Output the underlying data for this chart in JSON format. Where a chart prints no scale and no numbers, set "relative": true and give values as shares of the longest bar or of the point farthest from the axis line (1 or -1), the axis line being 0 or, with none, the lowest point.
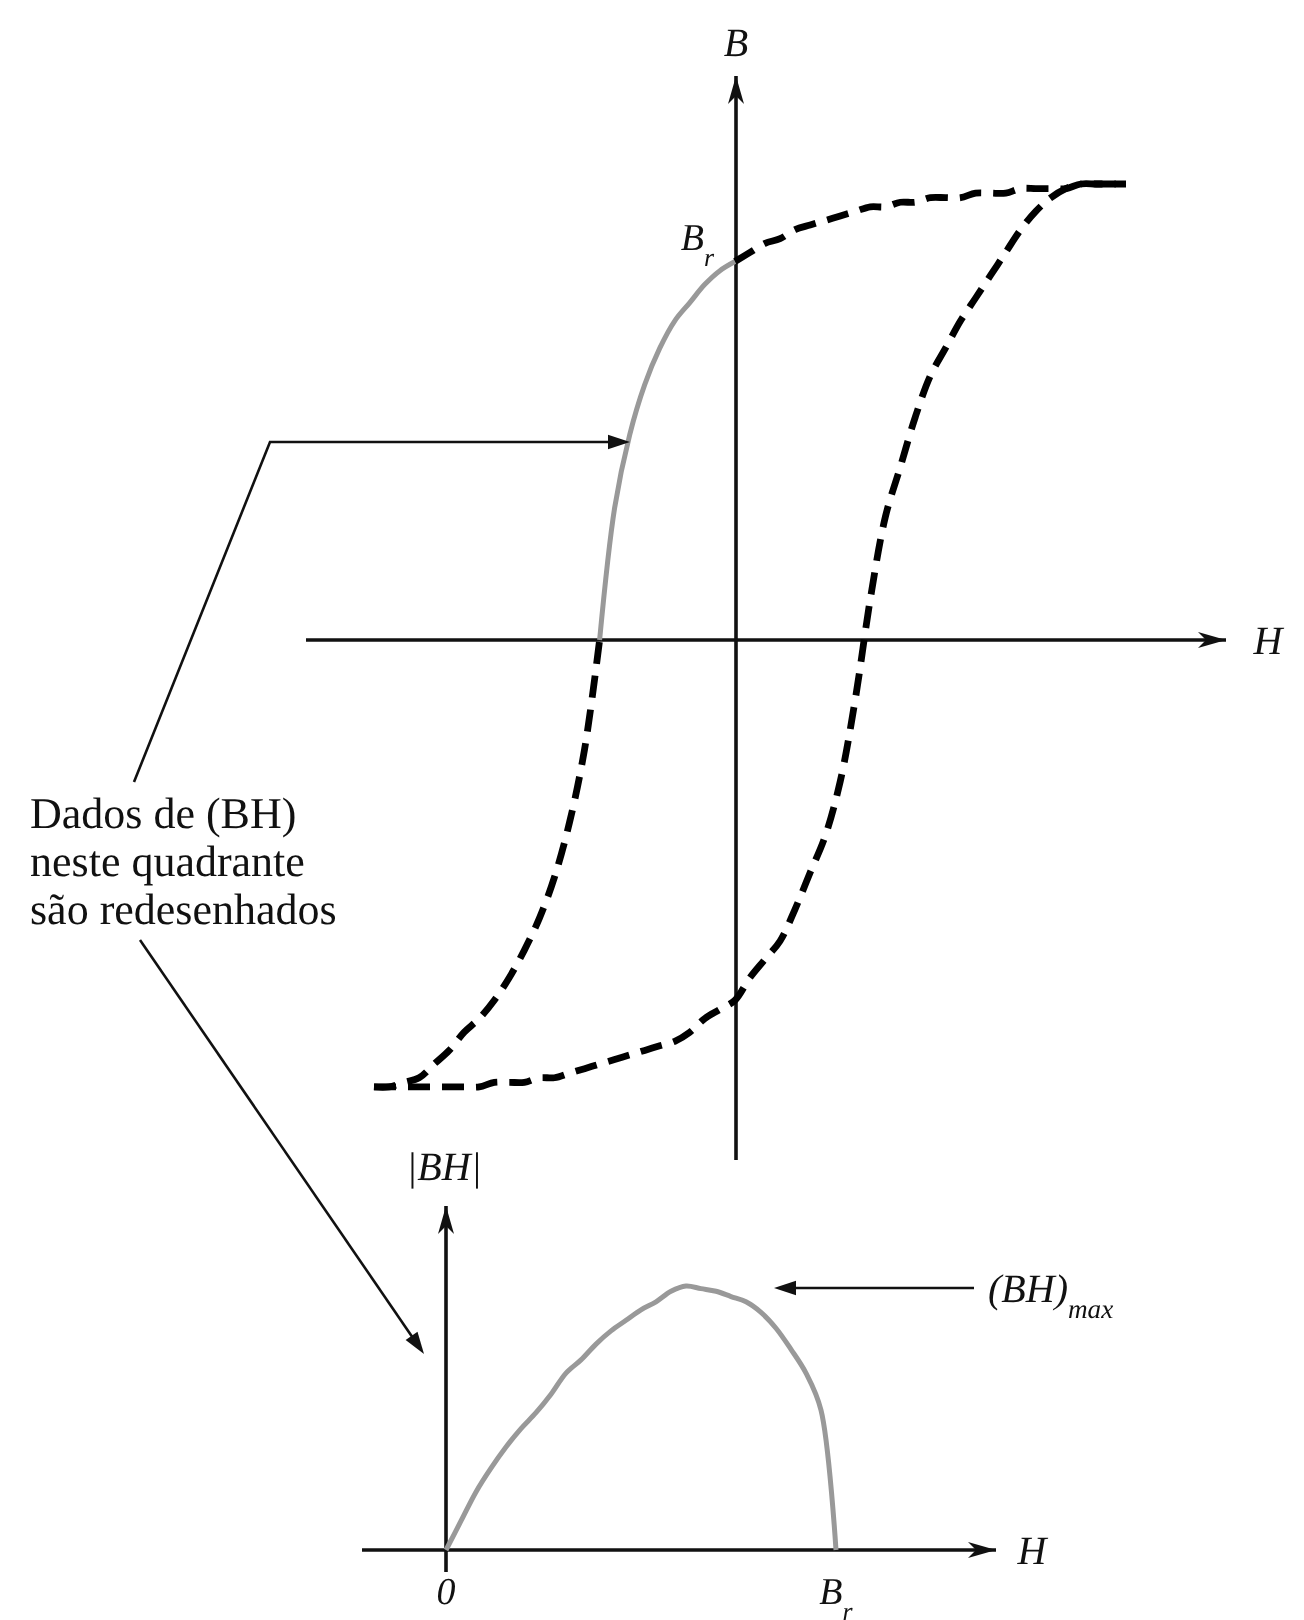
{
  "chart_data": [
    {
      "type": "line",
      "xlabel": "H",
      "ylabel": "B",
      "relative": true,
      "categories": [
        null,
        null,
        null,
        null,
        null,
        null,
        null,
        null,
        null,
        null,
        null,
        null,
        null,
        null,
        null,
        null,
        null,
        null,
        null,
        null,
        null,
        null,
        null,
        null,
        null,
        null,
        null,
        null,
        null,
        null,
        null,
        null,
        null,
        null,
        null,
        null,
        null,
        null,
        null,
        null,
        null,
        null,
        null,
        null,
        null,
        null,
        null,
        null,
        null,
        null,
        null
      ],
      "series": [
        {
          "color": "#000000",
          "line_style": "dashed",
          "values": [
            -0.98,
            -0.98,
            -0.97,
            -0.96,
            -0.93,
            -0.9,
            -0.86,
            -0.83,
            -0.79,
            -0.74,
            -0.68,
            -0.61,
            -0.52,
            -0.4,
            -0.24,
            0,
            null,
            null,
            null,
            null,
            null,
            null,
            null,
            null,
            0.83,
            0.85,
            0.87,
            0.88,
            0.9,
            0.91,
            0.92,
            0.93,
            0.94,
            0.95,
            0.95,
            0.96,
            0.96,
            0.97,
            0.97,
            0.97,
            0.98,
            0.98,
            0.98,
            0.99,
            0.99,
            0.99,
            0.99,
            1.0,
            1.0,
            1.0,
            1.0
          ]
        },
        {
          "color": "#999999",
          "line_style": "solid",
          "values": [
            null,
            null,
            null,
            null,
            null,
            null,
            null,
            null,
            null,
            null,
            null,
            null,
            null,
            null,
            null,
            0,
            0.29,
            0.45,
            0.56,
            0.64,
            0.7,
            0.74,
            0.78,
            0.81,
            0.83,
            null,
            null,
            null,
            null,
            null,
            null,
            null,
            null,
            null,
            null,
            null,
            null,
            null,
            null,
            null,
            null,
            null,
            null,
            null,
            null,
            null,
            null,
            null,
            null,
            null,
            null
          ]
        },
        {
          "color": "#000000",
          "line_style": "dashed",
          "values": [
            -0.98,
            -0.98,
            -0.98,
            -0.98,
            -0.98,
            -0.98,
            -0.98,
            -0.98,
            -0.97,
            -0.97,
            -0.97,
            -0.96,
            -0.96,
            -0.95,
            -0.94,
            -0.93,
            -0.92,
            -0.91,
            -0.9,
            -0.89,
            -0.88,
            -0.86,
            -0.83,
            -0.81,
            -0.79,
            -0.74,
            -0.7,
            -0.66,
            -0.59,
            -0.51,
            -0.43,
            -0.31,
            -0.13,
            0.09,
            0.27,
            0.38,
            0.49,
            0.58,
            0.64,
            0.7,
            0.75,
            0.8,
            0.85,
            0.9,
            0.94,
            0.97,
            0.99,
            1.0,
            1.0,
            1.0,
            1.0
          ]
        }
      ],
      "annotations": [
        "B$_{r}$",
        "Dados de (BH) neste quadrante são redesenhados"
      ]
    },
    {
      "type": "line",
      "xlabel": "H",
      "ylabel": "|BH|",
      "relative": true,
      "categories": [
        "0",
        null,
        null,
        null,
        null,
        null,
        null,
        null,
        null,
        null,
        null,
        null,
        null,
        null,
        null,
        null,
        null,
        null,
        null,
        null,
        null,
        null,
        null,
        null,
        null,
        null,
        "B$_{r}$"
      ],
      "series": [
        {
          "color": "#999999",
          "line_style": "solid",
          "values": [
            0,
            0.11,
            0.22,
            0.31,
            0.39,
            0.46,
            0.52,
            0.59,
            0.67,
            0.72,
            0.78,
            0.83,
            0.87,
            0.91,
            0.94,
            0.98,
            1.0,
            0.99,
            0.98,
            0.96,
            0.94,
            0.9,
            0.84,
            0.76,
            0.67,
            0.53,
            0
          ]
        }
      ],
      "annotations": [
        "(BH)$_{max}$"
      ]
    }
  ]
}
